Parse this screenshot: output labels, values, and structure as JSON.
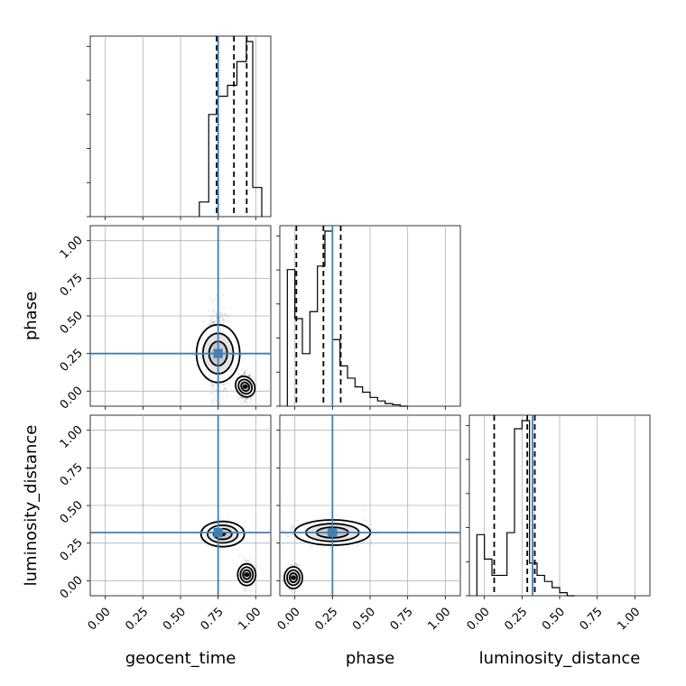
{
  "chart_data": {
    "type": "corner",
    "parameters": [
      "geocent_time",
      "phase",
      "luminosity_distance"
    ],
    "truths": {
      "geocent_time": 0.75,
      "phase": 0.25,
      "luminosity_distance": 0.32
    },
    "axis_range": [
      -0.1,
      1.1
    ],
    "ticks": [
      "0.00",
      "0.25",
      "0.50",
      "0.75",
      "1.00"
    ],
    "tick_values": [
      0.0,
      0.25,
      0.5,
      0.75,
      1.0
    ],
    "grid": true,
    "histograms": {
      "geocent_time": {
        "edges": [
          0.625,
          0.6875,
          0.75,
          0.8125,
          0.875,
          0.9375,
          0.98,
          1.04
        ],
        "counts": [
          0.08,
          0.56,
          0.66,
          0.72,
          0.85,
          0.96,
          0.16
        ],
        "quantiles": [
          0.74,
          0.855,
          0.94
        ]
      },
      "phase": {
        "edges": [
          -0.05,
          0.0,
          0.05,
          0.1,
          0.15,
          0.2,
          0.25,
          0.3,
          0.35,
          0.4,
          0.45,
          0.5,
          0.55,
          0.6,
          0.65,
          0.7,
          0.75
        ],
        "counts": [
          0.78,
          0.5,
          0.3,
          0.54,
          0.8,
          1.0,
          0.38,
          0.23,
          0.16,
          0.11,
          0.08,
          0.05,
          0.03,
          0.015,
          0.008,
          0.0
        ],
        "quantiles": [
          0.01,
          0.19,
          0.305
        ]
      },
      "luminosity_distance": {
        "edges": [
          -0.05,
          0.0,
          0.05,
          0.1,
          0.15,
          0.2,
          0.25,
          0.3,
          0.35,
          0.4,
          0.45,
          0.5,
          0.55,
          0.6
        ],
        "counts": [
          0.3,
          0.18,
          0.1,
          0.1,
          0.31,
          0.82,
          0.86,
          0.16,
          0.1,
          0.07,
          0.04,
          0.015,
          0.0
        ],
        "quantiles": [
          0.065,
          0.285,
          0.335
        ]
      }
    },
    "joint_densities": [
      {
        "x": "geocent_time",
        "y": "phase",
        "modes": [
          {
            "cx": 0.75,
            "cy": 0.25,
            "w": 1.0
          },
          {
            "cx": 0.93,
            "cy": 0.03,
            "w": 0.8
          }
        ]
      },
      {
        "x": "geocent_time",
        "y": "luminosity_distance",
        "modes": [
          {
            "cx": 0.78,
            "cy": 0.31,
            "w": 1.0
          },
          {
            "cx": 0.94,
            "cy": 0.04,
            "w": 0.5
          }
        ]
      },
      {
        "x": "phase",
        "y": "luminosity_distance",
        "modes": [
          {
            "cx": 0.25,
            "cy": 0.32,
            "w": 1.0
          },
          {
            "cx": -0.01,
            "cy": 0.02,
            "w": 0.5
          }
        ]
      }
    ]
  }
}
